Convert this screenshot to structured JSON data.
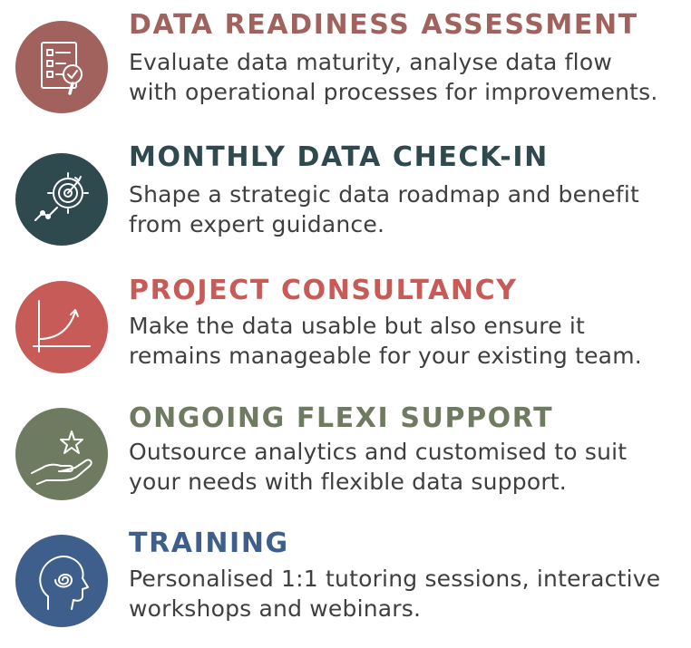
{
  "services": [
    {
      "title": "DATA READINESS ASSESSMENT",
      "desc_line1": "Evaluate data maturity, analyse data flow",
      "desc_line2": "with operational processes for improvements.",
      "color": "#a1625e",
      "icon": "checklist-magnifier-icon"
    },
    {
      "title": "MONTHLY DATA CHECK-IN",
      "desc_line1": "Shape a strategic data roadmap and benefit",
      "desc_line2": "from expert guidance.",
      "color": "#2f4a4f",
      "icon": "target-chart-icon"
    },
    {
      "title": "PROJECT CONSULTANCY",
      "desc_line1": "Make the data usable but also ensure it",
      "desc_line2": "remains manageable for your existing team.",
      "color": "#c65b58",
      "icon": "growth-curve-icon"
    },
    {
      "title": "ONGOING FLEXI SUPPORT",
      "desc_line1": "Outsource analytics and customised to suit",
      "desc_line2": "your needs with flexible data support.",
      "color": "#6f7b60",
      "icon": "hand-star-icon"
    },
    {
      "title": "TRAINING",
      "desc_line1": "Personalised 1:1 tutoring sessions, interactive",
      "desc_line2": "workshops and webinars.",
      "color": "#3e5f8c",
      "icon": "head-spiral-icon"
    }
  ]
}
